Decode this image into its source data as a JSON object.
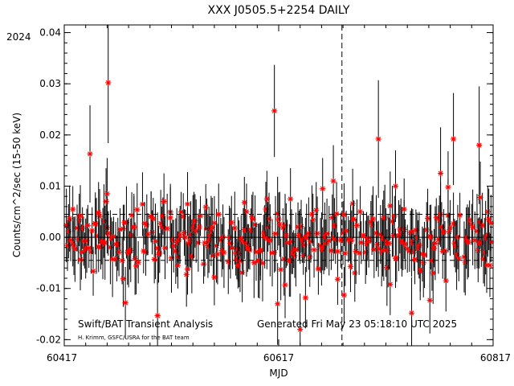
{
  "chart_data": {
    "type": "scatter",
    "title": "XXX J0505.5+2254 DAILY",
    "year_label": "2024",
    "xlabel": "MJD",
    "ylabel": "Counts/cm^2/sec (15-50 keV)",
    "xlim": [
      60417,
      60817
    ],
    "ylim": [
      -0.0212,
      0.0415
    ],
    "x_ticks": [
      60417,
      60617,
      60817
    ],
    "x_tick_labels": [
      "60417",
      "60617",
      "60817"
    ],
    "y_ticks": [
      -0.02,
      -0.01,
      0.0,
      0.01,
      0.02,
      0.03,
      0.04
    ],
    "y_tick_labels": [
      "-0.02",
      "-0.01",
      "0.00",
      "0.01",
      "0.02",
      "0.03",
      "0.04"
    ],
    "mean_line": 0.0,
    "sigma_lines": [
      0.0045,
      -0.0045
    ],
    "year_boundary_mjd": 60676,
    "footer_left": "Swift/BAT Transient Analysis",
    "footer_credit": "H. Krimm, GSFC/USRA for the BAT team",
    "footer_generated": "Generated Fri May 23 05:18:10 UTC 2025",
    "marker_color": "#ff0000",
    "outliers": [
      {
        "x": 60425,
        "y": 0.0055,
        "err": 0.0045
      },
      {
        "x": 60432,
        "y": 0.0042,
        "err": 0.006
      },
      {
        "x": 60441,
        "y": 0.0163,
        "err": 0.0095
      },
      {
        "x": 60446,
        "y": 0.0026,
        "err": 0.005
      },
      {
        "x": 60449,
        "y": 0.0048,
        "err": 0.006
      },
      {
        "x": 60452,
        "y": -0.0008,
        "err": 0.0045
      },
      {
        "x": 60456,
        "y": 0.007,
        "err": 0.0065
      },
      {
        "x": 60457,
        "y": 0.0085,
        "err": 0.007
      },
      {
        "x": 60458,
        "y": 0.0302,
        "err": 0.0118
      },
      {
        "x": 60472,
        "y": -0.0081,
        "err": 0.0055
      },
      {
        "x": 60474,
        "y": -0.0128,
        "err": 0.007
      },
      {
        "x": 60480,
        "y": 0.0043,
        "err": 0.0045
      },
      {
        "x": 60482,
        "y": 0.002,
        "err": 0.006
      },
      {
        "x": 60498,
        "y": 0.004,
        "err": 0.005
      },
      {
        "x": 60504,
        "y": -0.0153,
        "err": 0.007
      },
      {
        "x": 60510,
        "y": 0.007,
        "err": 0.0055
      },
      {
        "x": 60516,
        "y": 0.0038,
        "err": 0.006
      },
      {
        "x": 60523,
        "y": -0.0055,
        "err": 0.0045
      },
      {
        "x": 60532,
        "y": -0.0062,
        "err": 0.005
      },
      {
        "x": 60549,
        "y": 0.0059,
        "err": 0.0045
      },
      {
        "x": 60557,
        "y": -0.0078,
        "err": 0.0055
      },
      {
        "x": 60561,
        "y": 0.0045,
        "err": 0.006
      },
      {
        "x": 60579,
        "y": -0.0055,
        "err": 0.0045
      },
      {
        "x": 60585,
        "y": 0.0068,
        "err": 0.005
      },
      {
        "x": 60587,
        "y": 0.005,
        "err": 0.0055
      },
      {
        "x": 60600,
        "y": -0.0025,
        "err": 0.005
      },
      {
        "x": 60606,
        "y": 0.0075,
        "err": 0.0055
      },
      {
        "x": 60613,
        "y": 0.0247,
        "err": 0.009
      },
      {
        "x": 60616,
        "y": -0.013,
        "err": 0.008
      },
      {
        "x": 60619,
        "y": -0.0063,
        "err": 0.006
      },
      {
        "x": 60623,
        "y": -0.0093,
        "err": 0.0065
      },
      {
        "x": 60628,
        "y": 0.0075,
        "err": 0.006
      },
      {
        "x": 60637,
        "y": -0.018,
        "err": 0.007
      },
      {
        "x": 60642,
        "y": -0.0118,
        "err": 0.006
      },
      {
        "x": 60652,
        "y": 0.0053,
        "err": 0.0055
      },
      {
        "x": 60658,
        "y": 0.0095,
        "err": 0.006
      },
      {
        "x": 60668,
        "y": 0.011,
        "err": 0.007
      },
      {
        "x": 60672,
        "y": -0.0082,
        "err": 0.005
      },
      {
        "x": 60678,
        "y": -0.0113,
        "err": 0.0055
      },
      {
        "x": 60684,
        "y": -0.0057,
        "err": 0.005
      },
      {
        "x": 60693,
        "y": 0.005,
        "err": 0.005
      },
      {
        "x": 60710,
        "y": 0.0192,
        "err": 0.0115
      },
      {
        "x": 60715,
        "y": -0.0025,
        "err": 0.006
      },
      {
        "x": 60721,
        "y": -0.0092,
        "err": 0.006
      },
      {
        "x": 60726,
        "y": 0.01,
        "err": 0.007
      },
      {
        "x": 60734,
        "y": 0.0055,
        "err": 0.006
      },
      {
        "x": 60741,
        "y": -0.0148,
        "err": 0.007
      },
      {
        "x": 60749,
        "y": -0.0063,
        "err": 0.006
      },
      {
        "x": 60758,
        "y": -0.0123,
        "err": 0.0065
      },
      {
        "x": 60768,
        "y": 0.0125,
        "err": 0.009
      },
      {
        "x": 60773,
        "y": -0.0085,
        "err": 0.006
      },
      {
        "x": 60775,
        "y": 0.0098,
        "err": 0.007
      },
      {
        "x": 60780,
        "y": 0.0192,
        "err": 0.009
      },
      {
        "x": 60804,
        "y": 0.018,
        "err": 0.0115
      },
      {
        "x": 60805,
        "y": 0.0078,
        "err": 0.007
      },
      {
        "x": 60812,
        "y": 0.005,
        "err": 0.005
      },
      {
        "x": 60813,
        "y": 0.0035,
        "err": 0.006
      },
      {
        "x": 60815,
        "y": 0.0028,
        "err": 0.0055
      }
    ]
  }
}
